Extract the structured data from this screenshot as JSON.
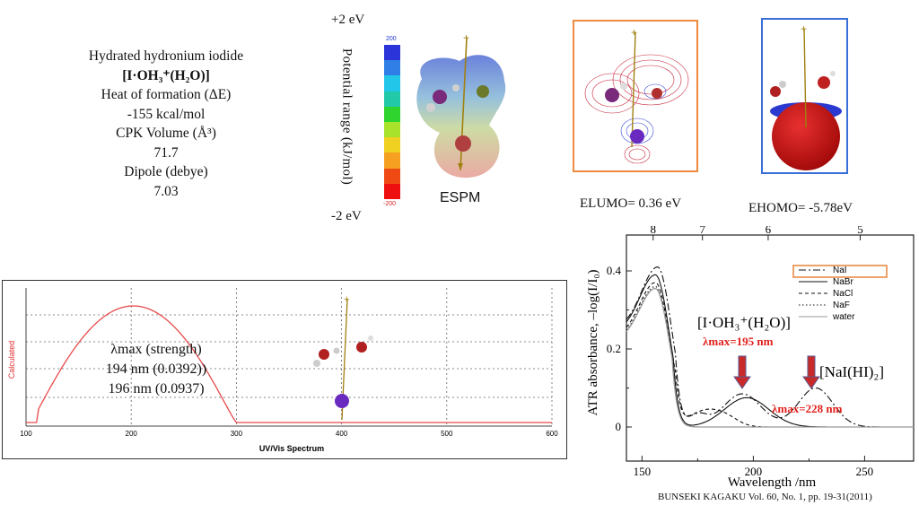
{
  "info": {
    "title": "Hydrated hydronium iodide",
    "formula": "[I·OH₃⁺(H₂O)]",
    "heat_label": "Heat of formation (ΔE)",
    "heat_value": "-155 kcal/mol",
    "cpk_label": "CPK Volume (Å³)",
    "cpk_value": "71.7",
    "dipole_label": "Dipole (debye)",
    "dipole_value": "7.03"
  },
  "espm": {
    "top_ev": "+2 eV",
    "bottom_ev": "-2 eV",
    "axis_label": "Potential range (kJ/mol)",
    "scale_max": "200",
    "scale_min": "-200",
    "label": "ESPM",
    "scale_colors": [
      "#2b34d8",
      "#2f7fe6",
      "#22c6e8",
      "#22c9a8",
      "#2fd42f",
      "#a8e22a",
      "#f0d020",
      "#f5a020",
      "#f04a14",
      "#ee1010"
    ]
  },
  "orbitals": {
    "elumo": "ELUMO= 0.36 eV",
    "ehomo": "EHOMO= -5.78eV",
    "lumo_border": "#f08a3c",
    "homo_border": "#3a6fd8"
  },
  "uv": {
    "ylabel": "Calculated",
    "xlabel": "UV/Vis Spectrum",
    "ticks": [
      "100",
      "200",
      "300",
      "400",
      "500",
      "600"
    ],
    "text1": "λmax (strength)",
    "text2": "194 nm (0.0392))",
    "text3": "196 nm (0.0937)",
    "curve_color": "#e84a4a"
  },
  "atr": {
    "top_ticks": [
      "8",
      "7",
      "6",
      "5"
    ],
    "x_ticks": [
      "150",
      "200",
      "250"
    ],
    "y_ticks": [
      "0.4",
      "0.2",
      "0"
    ],
    "xlabel": "Wavelength /nm",
    "ylabel": "ATR absorbance, –log(I/I₀)",
    "legend": [
      "NaI",
      "NaBr",
      "NaCl",
      "NaF",
      "water"
    ],
    "annot_formula": "[I·OH₃⁺(H₂O)]",
    "annot_lmax1": "λmax=195 nm",
    "annot_nai": "[NaI(HI)₂]",
    "annot_lmax2": "λmax=228 nm",
    "highlight": "#e8843a",
    "annot_color": "#e0201c"
  },
  "citation": "BUNSEKI KAGAKU Vol. 60, No. 1, pp. 19-31(2011)"
}
